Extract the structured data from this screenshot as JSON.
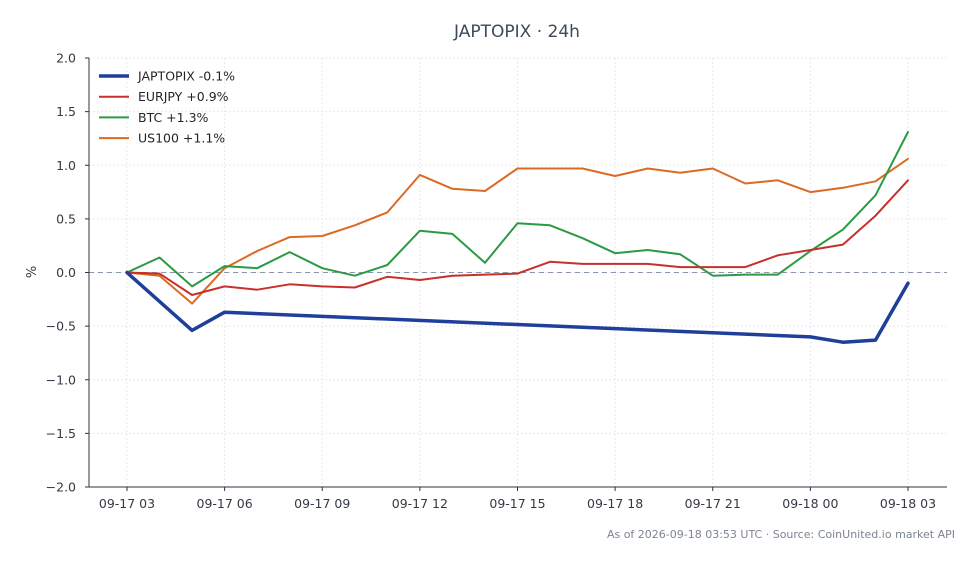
{
  "chart_data": {
    "type": "line",
    "title": "JAPTOPIX · 24h",
    "ylabel": "%",
    "xlabel": "",
    "ylim": [
      -2.0,
      2.0
    ],
    "yticks": [
      -2.0,
      -1.5,
      -1.0,
      -0.5,
      0.0,
      0.5,
      1.0,
      1.5,
      2.0
    ],
    "ytick_labels": [
      "−2.0",
      "−1.5",
      "−1.0",
      "−0.5",
      "0.0",
      "0.5",
      "1.0",
      "1.5",
      "2.0"
    ],
    "xlim": [
      0,
      24
    ],
    "xticks": [
      0,
      3,
      6,
      9,
      12,
      15,
      18,
      21,
      24
    ],
    "xtick_labels": [
      "09-17 03",
      "09-17 06",
      "09-17 09",
      "09-17 12",
      "09-17 15",
      "09-17 18",
      "09-17 21",
      "09-18 00",
      "09-18 03"
    ],
    "grid": true,
    "zero_line": true,
    "legend_position": "top-left",
    "series": [
      {
        "name": "JAPTOPIX -0.1%",
        "color": "#1f3f9a",
        "width": 3.5,
        "x": [
          0,
          2,
          3,
          21,
          22,
          23,
          24
        ],
        "values": [
          0.0,
          -0.54,
          -0.37,
          -0.6,
          -0.65,
          -0.63,
          -0.1
        ]
      },
      {
        "name": "EURJPY +0.9%",
        "color": "#c8302b",
        "width": 2,
        "x": [
          0,
          1,
          2,
          3,
          4,
          5,
          6,
          7,
          8,
          9,
          10,
          11,
          12,
          13,
          14,
          15,
          16,
          17,
          18,
          19,
          20,
          21,
          22,
          23,
          24
        ],
        "values": [
          0.0,
          -0.01,
          -0.21,
          -0.13,
          -0.16,
          -0.11,
          -0.13,
          -0.14,
          -0.04,
          -0.07,
          -0.03,
          -0.02,
          -0.01,
          0.1,
          0.08,
          0.08,
          0.08,
          0.05,
          0.05,
          0.05,
          0.16,
          0.21,
          0.26,
          0.53,
          0.86
        ]
      },
      {
        "name": "BTC +1.3%",
        "color": "#2a9a43",
        "width": 2,
        "x": [
          0,
          1,
          2,
          3,
          4,
          5,
          6,
          7,
          8,
          9,
          10,
          11,
          12,
          13,
          14,
          15,
          16,
          17,
          18,
          19,
          20,
          21,
          22,
          23,
          24
        ],
        "values": [
          0.0,
          0.14,
          -0.13,
          0.06,
          0.04,
          0.19,
          0.04,
          -0.03,
          0.07,
          0.39,
          0.36,
          0.09,
          0.46,
          0.44,
          0.32,
          0.18,
          0.21,
          0.17,
          -0.03,
          -0.02,
          -0.02,
          0.2,
          0.4,
          0.72,
          1.31
        ]
      },
      {
        "name": "US100 +1.1%",
        "color": "#dc6a23",
        "width": 2,
        "x": [
          0,
          1,
          2,
          3,
          4,
          5,
          6,
          7,
          8,
          9,
          10,
          11,
          12,
          13,
          14,
          15,
          16,
          17,
          18,
          19,
          20,
          21,
          22,
          23,
          24
        ],
        "values": [
          0.0,
          -0.03,
          -0.29,
          0.04,
          0.2,
          0.33,
          0.34,
          0.44,
          0.56,
          0.91,
          0.78,
          0.76,
          0.97,
          0.97,
          0.97,
          0.9,
          0.97,
          0.93,
          0.97,
          0.83,
          0.86,
          0.75,
          0.79,
          0.85,
          1.06
        ]
      }
    ]
  },
  "footer": {
    "text": "As of 2026-09-18 03:53 UTC · Source: CoinUnited.io market API"
  }
}
